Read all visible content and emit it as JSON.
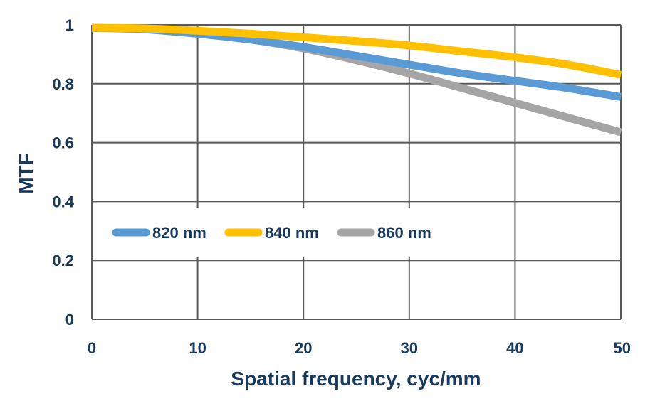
{
  "chart_data": {
    "type": "line",
    "title": "",
    "xlabel": "Spatial frequency, cyc/mm",
    "ylabel": "MTF",
    "xlim": [
      0,
      50
    ],
    "ylim": [
      0,
      1
    ],
    "x_ticks": [
      0,
      10,
      20,
      30,
      40,
      50
    ],
    "y_ticks": [
      0,
      0.2,
      0.4,
      0.6,
      0.8,
      1
    ],
    "y_tick_labels": [
      "0",
      "0.2",
      "0.4",
      "0.6",
      "0.8",
      "1"
    ],
    "grid": true,
    "legend_position": "center-left",
    "series": [
      {
        "name": "820 nm",
        "color": "#5b9bd5",
        "x": [
          0,
          5,
          10,
          15,
          20,
          25,
          30,
          35,
          40,
          45,
          50
        ],
        "y": [
          0.99,
          0.985,
          0.97,
          0.95,
          0.925,
          0.895,
          0.865,
          0.835,
          0.81,
          0.785,
          0.755
        ]
      },
      {
        "name": "840 nm",
        "color": "#ffc000",
        "x": [
          0,
          5,
          10,
          15,
          20,
          25,
          30,
          35,
          40,
          45,
          50
        ],
        "y": [
          0.99,
          0.988,
          0.98,
          0.97,
          0.958,
          0.945,
          0.93,
          0.91,
          0.89,
          0.865,
          0.83
        ]
      },
      {
        "name": "860 nm",
        "color": "#a5a5a5",
        "x": [
          0,
          5,
          10,
          15,
          20,
          25,
          30,
          35,
          40,
          45,
          50
        ],
        "y": [
          0.99,
          0.985,
          0.97,
          0.95,
          0.92,
          0.88,
          0.835,
          0.785,
          0.735,
          0.685,
          0.635
        ]
      }
    ]
  }
}
